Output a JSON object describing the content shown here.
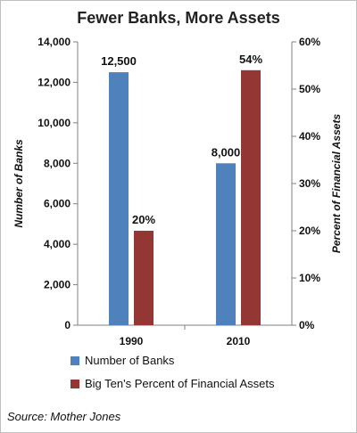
{
  "chart_data": {
    "type": "bar",
    "title": "Fewer Banks, More Assets",
    "categories": [
      "1990",
      "2010"
    ],
    "series": [
      {
        "name": "Number of Banks",
        "axis": "left",
        "color": "#4f81bd",
        "values": [
          12500,
          8000
        ],
        "labels": [
          "12,500",
          "8,000"
        ]
      },
      {
        "name": "Big Ten's Percent of Financial Assets",
        "axis": "right",
        "color": "#943634",
        "values": [
          20,
          54
        ],
        "labels": [
          "20%",
          "54%"
        ]
      }
    ],
    "ylabel": "Number of Banks",
    "y2label": "Percent of Financial Assets",
    "ylim": [
      0,
      14000
    ],
    "y2lim": [
      0,
      60
    ],
    "yticks": [
      "0",
      "2,000",
      "4,000",
      "6,000",
      "8,000",
      "10,000",
      "12,000",
      "14,000"
    ],
    "y2ticks": [
      "0%",
      "10%",
      "20%",
      "30%",
      "40%",
      "50%",
      "60%"
    ],
    "legend_position": "bottom-left",
    "grid": false
  },
  "source": "Source: Mother Jones"
}
